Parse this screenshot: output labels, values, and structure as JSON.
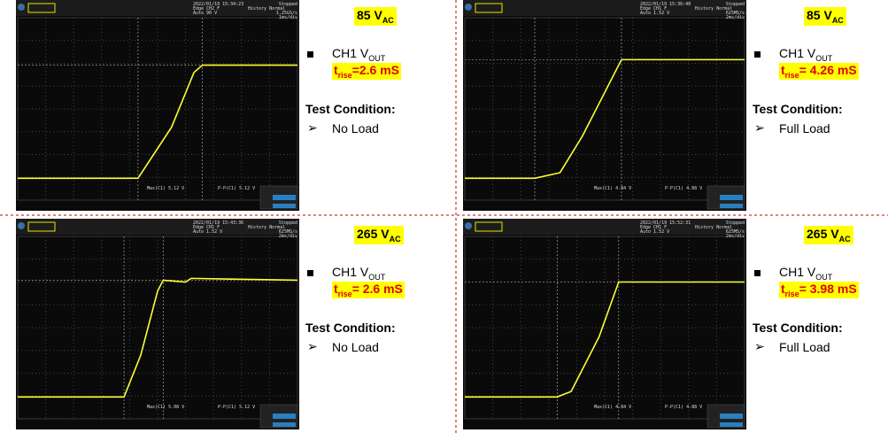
{
  "panels": [
    {
      "voltage": {
        "text": "85 V",
        "sub": "AC"
      },
      "signal": {
        "text": "CH1 V",
        "sub": "OUT"
      },
      "trise": {
        "t": "t",
        "sub": "rise",
        "rest": "=2.6 mS"
      },
      "condition_title": "Test Condition:",
      "condition": "No Load",
      "scope": {
        "timestamp": "2022/01/19 15:34:23",
        "status": "Stopped",
        "trigger": "Edge CH2 F",
        "level": "Auto 90 V",
        "mode": "History  Normal",
        "rate": "1.25GS/s",
        "timebase": "1ms/div",
        "max": "Max(C1)  5.12 V",
        "pp": "P-P(C1)  5.12 V"
      }
    },
    {
      "voltage": {
        "text": "85 V",
        "sub": "AC"
      },
      "signal": {
        "text": "CH1 V",
        "sub": "OUT"
      },
      "trise": {
        "t": "t",
        "sub": "rise",
        "rest": "= 4.26 mS"
      },
      "condition_title": "Test Condition:",
      "condition": "Full Load",
      "scope": {
        "timestamp": "2022/01/19 15:36:48",
        "status": "Stopped",
        "trigger": "Edge CH1 F",
        "level": "Auto 1.52 V",
        "mode": "History  Normal",
        "rate": "625MS/s",
        "timebase": "2ms/div",
        "max": "Max(C1)  4.84 V",
        "pp": "P-P(C1)  4.88 V"
      }
    },
    {
      "voltage": {
        "text": "265 V",
        "sub": "AC"
      },
      "signal": {
        "text": "CH1 V",
        "sub": "OUT"
      },
      "trise": {
        "t": "t",
        "sub": "rise",
        "rest": "= 2.6 mS"
      },
      "condition_title": "Test Condition:",
      "condition": "No Load",
      "scope": {
        "timestamp": "2022/01/19 15:43:36",
        "status": "Stopped",
        "trigger": "Edge CH1 F",
        "level": "Auto 1.52 V",
        "mode": "History  Normal",
        "rate": "625MS/s",
        "timebase": "2ms/div",
        "max": "Max(C1)  5.08 V",
        "pp": "P-P(C1)  5.12 V"
      }
    },
    {
      "voltage": {
        "text": "265 V",
        "sub": "AC"
      },
      "signal": {
        "text": "CH1 V",
        "sub": "OUT"
      },
      "trise": {
        "t": "t",
        "sub": "rise",
        "rest": "= 3.98 mS"
      },
      "condition_title": "Test Condition:",
      "condition": "Full Load",
      "scope": {
        "timestamp": "2022/01/19 15:52:31",
        "status": "Stopped",
        "trigger": "Edge CH1 F",
        "level": "Auto 1.52 V",
        "mode": "History  Normal",
        "rate": "625MS/s",
        "timebase": "2ms/div",
        "max": "Max(C1)  4.84 V",
        "pp": "P-P(C1)  4.88 V"
      }
    }
  ]
}
